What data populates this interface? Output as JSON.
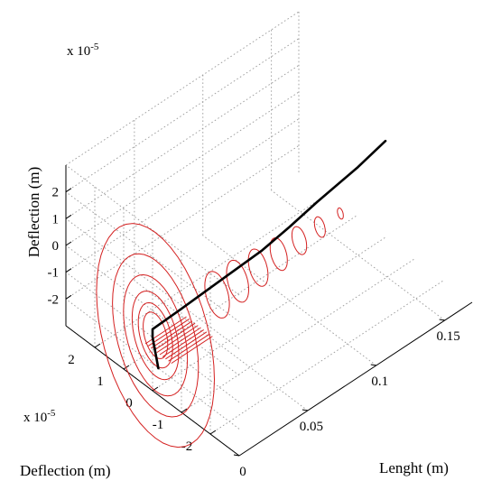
{
  "chart_data": {
    "type": "line",
    "subtype": "3d",
    "title": "",
    "axes": {
      "length": {
        "label": "Lenght (m)",
        "range": [
          0,
          0.17
        ],
        "ticks": [
          0,
          0.05,
          0.1,
          0.15
        ],
        "tick_labels": [
          "0",
          "0.05",
          "0.1",
          "0.15"
        ]
      },
      "deflection_depth": {
        "label": "Deflection (m)",
        "multiplier": "x 10",
        "exponent": "-5",
        "range": [
          -3,
          3
        ],
        "ticks": [
          -2,
          -1,
          0,
          1,
          2
        ],
        "tick_labels": [
          "-2",
          "-1",
          "0",
          "1",
          "2"
        ]
      },
      "deflection_vertical": {
        "label": "Deflection (m)",
        "multiplier": "x 10",
        "exponent": "-5",
        "range": [
          -3,
          3
        ],
        "ticks": [
          -2,
          -1,
          0,
          1,
          2
        ],
        "tick_labels": [
          "-2",
          "-1",
          "0",
          "1",
          "2"
        ]
      }
    },
    "grid": true,
    "series": [
      {
        "color": "#d42020",
        "style": "thin",
        "description_points": "whirl orbits shrinking along shaft length",
        "orbits": [
          {
            "length": 0.0,
            "radius": 2.4
          },
          {
            "length": 0.0,
            "radius": 1.75
          },
          {
            "length": 0.0,
            "radius": 1.3
          },
          {
            "length": 0.0,
            "radius": 0.95
          },
          {
            "length": 0.0,
            "radius": 0.7
          },
          {
            "length": 0.0,
            "radius": 0.5
          },
          {
            "length": 0.045,
            "radius": 0.5
          },
          {
            "length": 0.06,
            "radius": 0.45
          },
          {
            "length": 0.075,
            "radius": 0.4
          },
          {
            "length": 0.09,
            "radius": 0.35
          },
          {
            "length": 0.105,
            "radius": 0.3
          },
          {
            "length": 0.12,
            "radius": 0.22
          },
          {
            "length": 0.135,
            "radius": 0.12
          }
        ]
      },
      {
        "color": "#000000",
        "style": "thick",
        "points": [
          {
            "length": 0.0,
            "y": -0.2,
            "z": -2.0
          },
          {
            "length": 0.0,
            "y": -0.1,
            "z": -1.5
          },
          {
            "length": 0.0,
            "y": 0.0,
            "z": -1.0
          },
          {
            "length": 0.0,
            "y": 0.0,
            "z": -0.7
          },
          {
            "length": 0.02,
            "y": 0.0,
            "z": -0.65
          },
          {
            "length": 0.05,
            "y": 0.0,
            "z": -0.55
          },
          {
            "length": 0.08,
            "y": 0.0,
            "z": -0.45
          },
          {
            "length": 0.1,
            "y": 0.0,
            "z": -0.25
          },
          {
            "length": 0.12,
            "y": 0.0,
            "z": 0.0
          },
          {
            "length": 0.15,
            "y": 0.0,
            "z": 0.3
          },
          {
            "length": 0.17,
            "y": 0.0,
            "z": 0.6
          }
        ]
      }
    ]
  }
}
